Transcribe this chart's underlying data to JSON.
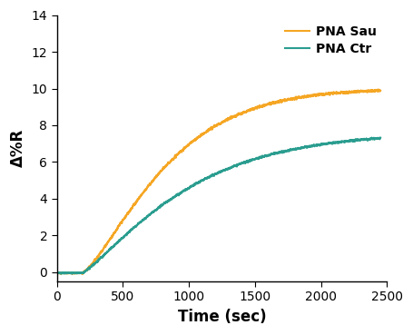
{
  "title": "",
  "xlabel": "Time (sec)",
  "ylabel": "Δ%R",
  "xlim": [
    0,
    2500
  ],
  "ylim": [
    -0.5,
    14
  ],
  "yticks": [
    0,
    2,
    4,
    6,
    8,
    10,
    12,
    14
  ],
  "xticks": [
    0,
    500,
    1000,
    1500,
    2000,
    2500
  ],
  "pna_sau_color": "#F5A623",
  "pna_ctr_color": "#2A9D8F",
  "legend_labels": [
    "PNA Sau",
    "PNA Ctr"
  ],
  "linewidth": 1.5,
  "background_color": "#ffffff",
  "sau_plateau": 10.0,
  "ctr_plateau": 7.6,
  "rise_start": 200,
  "sau_tau": 700,
  "ctr_tau": 850,
  "sau_exp": 1.3,
  "ctr_exp": 1.2,
  "noise_sau": 0.05,
  "noise_ctr": 0.04,
  "figsize": [
    4.55,
    3.69
  ],
  "dpi": 100
}
